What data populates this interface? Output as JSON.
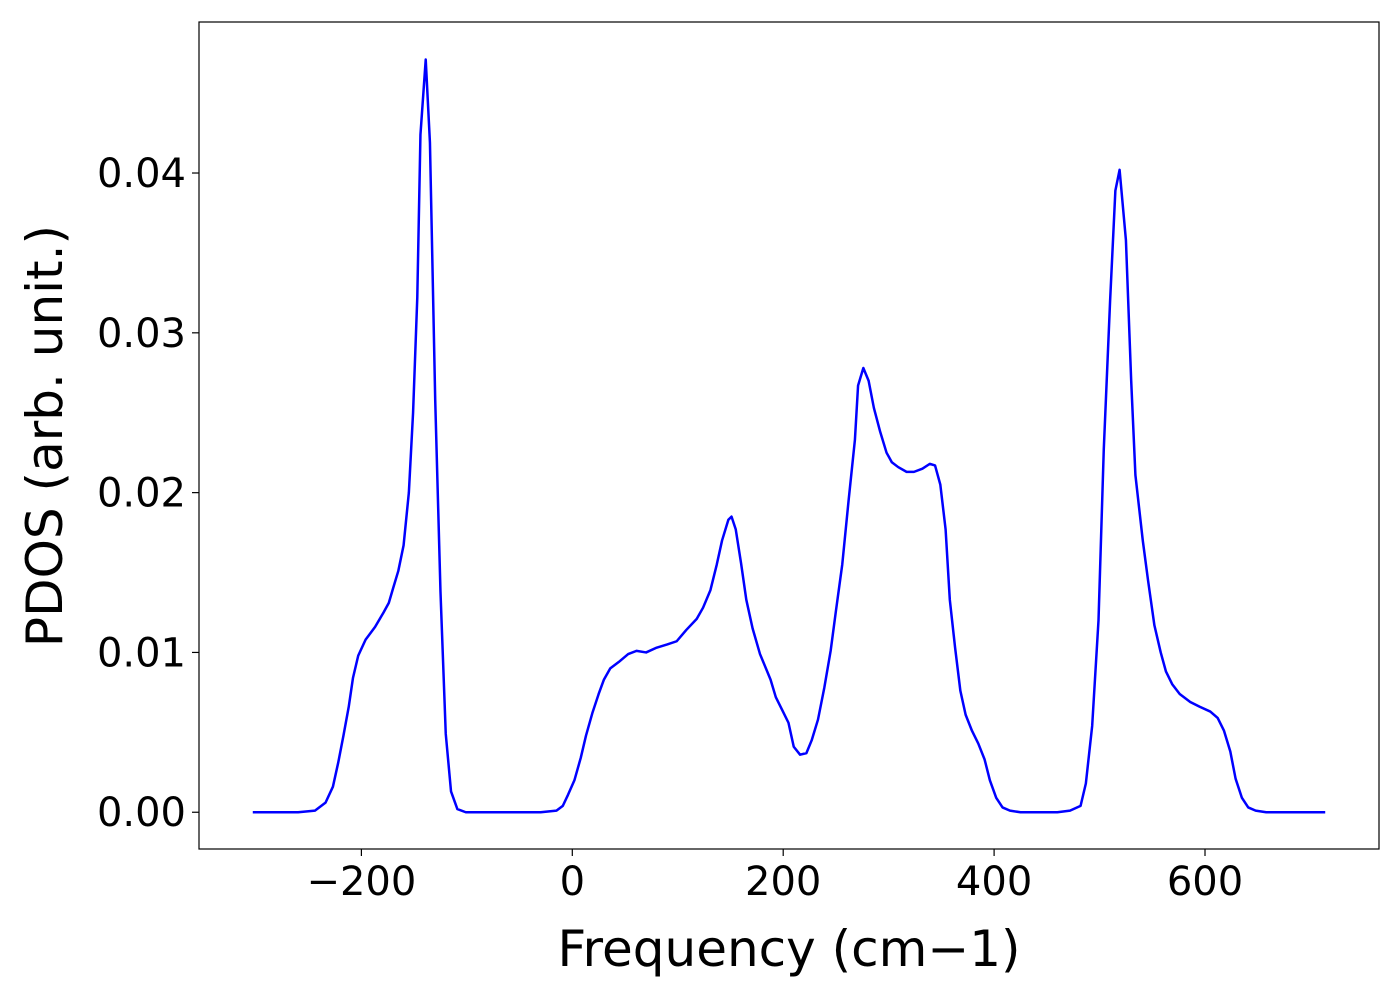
{
  "chart_data": {
    "type": "line",
    "xlabel": "Frequency (cm−1)",
    "ylabel": "PDOS (arb. unit.)",
    "color": "#0000ff",
    "x": [
      -303,
      -260,
      -244,
      -234,
      -227,
      -222,
      -217,
      -212,
      -208,
      -203,
      -196,
      -187,
      -179,
      -174,
      -170,
      -165,
      -160,
      -155,
      -151,
      -147,
      -144,
      -139,
      -135,
      -130,
      -125,
      -120,
      -115,
      -109,
      -101,
      -90,
      -30,
      -15,
      -9,
      -4,
      2,
      8,
      13,
      19,
      25,
      30,
      36,
      44,
      53,
      61,
      70,
      80,
      90,
      99,
      108,
      118,
      124,
      131,
      137,
      142,
      148,
      151,
      155,
      160,
      165,
      171,
      178,
      188,
      193,
      199,
      205,
      210,
      216,
      222,
      227,
      233,
      239,
      245,
      250,
      256,
      262,
      268,
      271,
      276,
      281,
      286,
      292,
      298,
      303,
      309,
      317,
      324,
      332,
      339,
      344,
      349,
      354,
      358,
      363,
      368,
      373,
      379,
      385,
      391,
      396,
      402,
      408,
      415,
      425,
      440,
      460,
      472,
      482,
      487,
      493,
      499,
      504,
      510,
      515,
      519,
      525,
      530,
      534,
      541,
      546,
      552,
      558,
      563,
      569,
      576,
      586,
      595,
      605,
      612,
      618,
      624,
      629,
      635,
      641,
      648,
      658,
      714
    ],
    "values": [
      0,
      0,
      0.0001,
      0.0006,
      0.0016,
      0.0031,
      0.0048,
      0.0066,
      0.0084,
      0.0098,
      0.0108,
      0.0116,
      0.0125,
      0.0131,
      0.014,
      0.0151,
      0.0167,
      0.02,
      0.025,
      0.0322,
      0.0424,
      0.0471,
      0.0419,
      0.0258,
      0.0138,
      0.0049,
      0.0013,
      0.0002,
      0,
      0,
      0,
      0.0001,
      0.0004,
      0.0011,
      0.002,
      0.0034,
      0.0048,
      0.0062,
      0.0074,
      0.0083,
      0.009,
      0.0094,
      0.0099,
      0.0101,
      0.01,
      0.0103,
      0.0105,
      0.0107,
      0.0114,
      0.0121,
      0.0128,
      0.0139,
      0.0155,
      0.017,
      0.0183,
      0.0185,
      0.0177,
      0.0156,
      0.0133,
      0.0115,
      0.0099,
      0.0083,
      0.0072,
      0.0064,
      0.0056,
      0.0041,
      0.0036,
      0.0037,
      0.0045,
      0.0058,
      0.0078,
      0.0101,
      0.0126,
      0.0155,
      0.0195,
      0.0233,
      0.0267,
      0.0278,
      0.027,
      0.0253,
      0.0238,
      0.0225,
      0.0219,
      0.0216,
      0.0213,
      0.0213,
      0.0215,
      0.0218,
      0.0217,
      0.0205,
      0.0177,
      0.0133,
      0.0103,
      0.0076,
      0.0061,
      0.0051,
      0.0043,
      0.0033,
      0.002,
      0.0009,
      0.0003,
      0.0001,
      0,
      0,
      0,
      0.0001,
      0.0004,
      0.0018,
      0.0054,
      0.012,
      0.0227,
      0.032,
      0.0389,
      0.0402,
      0.0358,
      0.027,
      0.0211,
      0.017,
      0.0145,
      0.0117,
      0.01,
      0.0088,
      0.008,
      0.0074,
      0.0069,
      0.0066,
      0.0063,
      0.0059,
      0.0051,
      0.0038,
      0.0021,
      0.0009,
      0.0003,
      0.0001,
      0,
      0
    ],
    "xlim": [
      -354,
      765
    ],
    "ylim": [
      -0.0023,
      0.04945
    ],
    "xticks": [
      {
        "value": -200,
        "label": "−200"
      },
      0,
      200,
      400,
      600
    ],
    "yticks": [
      {
        "value": 0,
        "label": "0.00"
      },
      0.01,
      0.02,
      0.03,
      0.04
    ]
  }
}
